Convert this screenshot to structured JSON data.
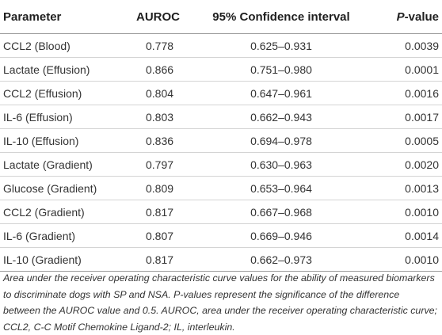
{
  "table": {
    "headers": {
      "parameter": "Parameter",
      "auroc": "AUROC",
      "ci": "95% Confidence interval",
      "pvalue_italic": "P",
      "pvalue_rest": "-value"
    },
    "rows": [
      {
        "parameter": "CCL2 (Blood)",
        "auroc": "0.778",
        "ci": "0.625–0.931",
        "p": "0.0039"
      },
      {
        "parameter": "Lactate (Effusion)",
        "auroc": "0.866",
        "ci": "0.751–0.980",
        "p": "0.0001"
      },
      {
        "parameter": "CCL2 (Effusion)",
        "auroc": "0.804",
        "ci": "0.647–0.961",
        "p": "0.0016"
      },
      {
        "parameter": "IL-6 (Effusion)",
        "auroc": "0.803",
        "ci": "0.662–0.943",
        "p": "0.0017"
      },
      {
        "parameter": "IL-10 (Effusion)",
        "auroc": "0.836",
        "ci": "0.694–0.978",
        "p": "0.0005"
      },
      {
        "parameter": "Lactate (Gradient)",
        "auroc": "0.797",
        "ci": "0.630–0.963",
        "p": "0.0020"
      },
      {
        "parameter": "Glucose (Gradient)",
        "auroc": "0.809",
        "ci": "0.653–0.964",
        "p": "0.0013"
      },
      {
        "parameter": "CCL2 (Gradient)",
        "auroc": "0.817",
        "ci": "0.667–0.968",
        "p": "0.0010"
      },
      {
        "parameter": "IL-6 (Gradient)",
        "auroc": "0.807",
        "ci": "0.669–0.946",
        "p": "0.0014"
      },
      {
        "parameter": "IL-10 (Gradient)",
        "auroc": "0.817",
        "ci": "0.662–0.973",
        "p": "0.0010"
      }
    ]
  },
  "caption": "Area under the receiver operating characteristic curve values for the ability of measured biomarkers to discriminate dogs with SP and NSA. P-values represent the significance of the difference between the AUROC value and 0.5. AUROC, area under the receiver operating characteristic curve; CCL2, C-C Motif Chemokine Ligand-2; IL, interleukin."
}
